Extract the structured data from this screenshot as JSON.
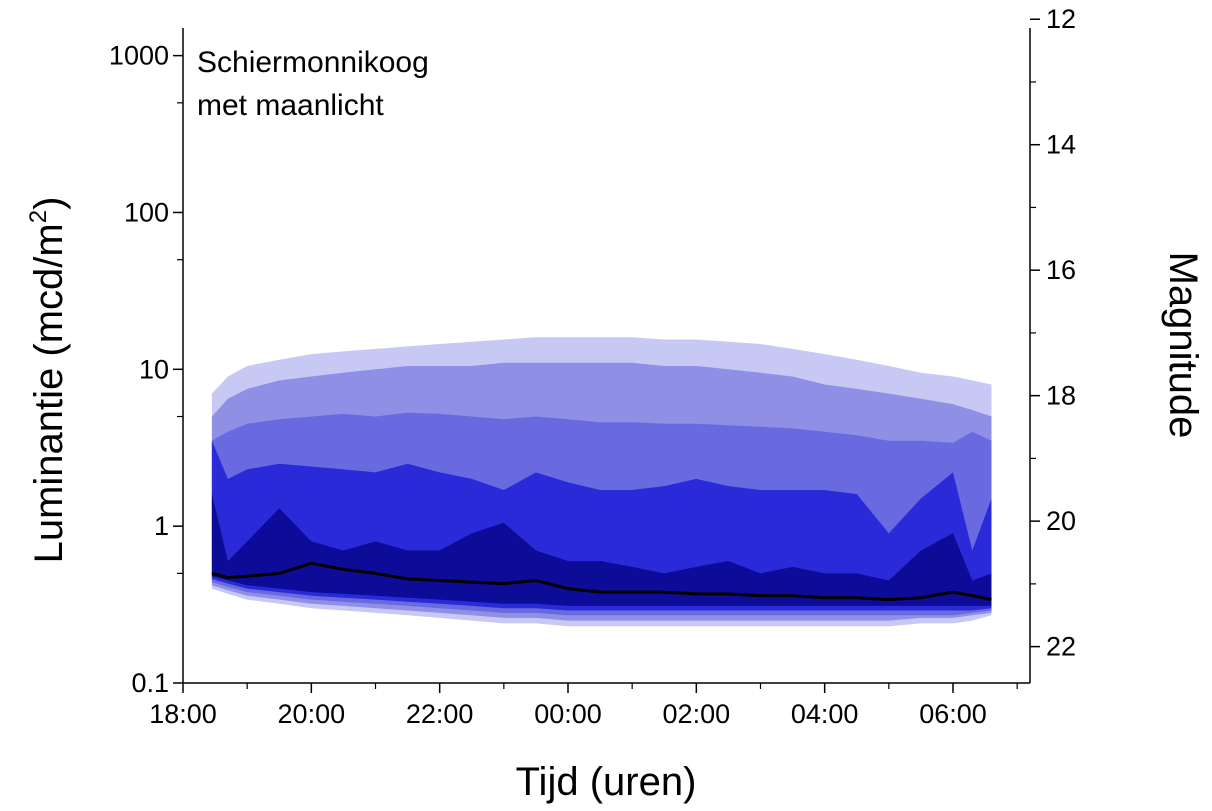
{
  "chart_data": {
    "type": "area",
    "annotation": [
      "Schiermonnikoog",
      "met maanlicht"
    ],
    "xlabel": "Tijd (uren)",
    "ylabel": "Luminantie (mcd/m",
    "ylabel_sup": "2",
    "ylabel_close": ")",
    "y2label": "Magnitude",
    "x_tick_labels": [
      "18:00",
      "20:00",
      "22:00",
      "00:00",
      "02:00",
      "04:00",
      "06:00"
    ],
    "x_tick_hours": [
      0,
      2,
      4,
      6,
      8,
      10,
      12
    ],
    "xlim_hours_after_1800": [
      0,
      13.2
    ],
    "y_scale": "log",
    "ylim": [
      0.1,
      1500
    ],
    "y_ticks": [
      0.1,
      1,
      10,
      100,
      1000
    ],
    "y_tick_labels": [
      "0.1",
      "1",
      "10",
      "100",
      "1000"
    ],
    "y2_ticks": [
      12,
      14,
      16,
      18,
      20,
      22
    ],
    "y2_tick_labels": [
      "12",
      "14",
      "16",
      "18",
      "20",
      "22"
    ],
    "y2_relation": "magnitude = 12.58 - 2.5*log10(L/1000)",
    "grid": false,
    "x_hours": [
      0.45,
      0.7,
      1.0,
      1.5,
      2.0,
      2.5,
      3.0,
      3.5,
      4.0,
      4.5,
      5.0,
      5.5,
      6.0,
      6.5,
      7.0,
      7.5,
      8.0,
      8.5,
      9.0,
      9.5,
      10.0,
      10.5,
      11.0,
      11.5,
      12.0,
      12.3,
      12.6
    ],
    "bands": [
      {
        "name": "p0-p100",
        "color": "#c8c8f4",
        "lower": [
          0.4,
          0.37,
          0.34,
          0.32,
          0.3,
          0.29,
          0.28,
          0.27,
          0.26,
          0.25,
          0.24,
          0.24,
          0.23,
          0.23,
          0.23,
          0.23,
          0.23,
          0.23,
          0.23,
          0.23,
          0.23,
          0.23,
          0.23,
          0.24,
          0.24,
          0.25,
          0.27
        ],
        "upper": [
          7.0,
          9.0,
          10.5,
          11.5,
          12.5,
          13.0,
          13.5,
          14.0,
          14.5,
          15.0,
          15.5,
          16.0,
          16.0,
          16.0,
          16.0,
          15.5,
          15.5,
          15.0,
          14.5,
          13.5,
          12.5,
          11.5,
          10.5,
          9.5,
          9.0,
          8.5,
          8.0
        ]
      },
      {
        "name": "p5-p95",
        "color": "#8f8fe6",
        "lower": [
          0.42,
          0.39,
          0.36,
          0.34,
          0.32,
          0.31,
          0.3,
          0.29,
          0.28,
          0.27,
          0.26,
          0.26,
          0.25,
          0.25,
          0.25,
          0.25,
          0.25,
          0.25,
          0.25,
          0.25,
          0.25,
          0.25,
          0.25,
          0.26,
          0.26,
          0.27,
          0.28
        ],
        "upper": [
          5.0,
          6.5,
          7.5,
          8.5,
          9.0,
          9.5,
          10.0,
          10.5,
          10.5,
          10.5,
          11.0,
          11.0,
          11.0,
          11.0,
          11.0,
          10.5,
          10.5,
          10.0,
          9.5,
          9.0,
          8.0,
          7.5,
          7.0,
          6.5,
          6.0,
          5.5,
          5.0
        ]
      },
      {
        "name": "p10-p90",
        "color": "#6a6ae0",
        "lower": [
          0.44,
          0.41,
          0.38,
          0.36,
          0.34,
          0.33,
          0.32,
          0.31,
          0.3,
          0.29,
          0.28,
          0.28,
          0.27,
          0.27,
          0.27,
          0.27,
          0.27,
          0.27,
          0.27,
          0.27,
          0.27,
          0.27,
          0.27,
          0.27,
          0.27,
          0.28,
          0.29
        ],
        "upper": [
          3.5,
          4.0,
          4.5,
          4.8,
          5.0,
          5.2,
          5.0,
          5.3,
          5.2,
          5.0,
          4.8,
          5.0,
          4.8,
          4.6,
          4.6,
          4.5,
          4.5,
          4.4,
          4.3,
          4.2,
          4.0,
          3.8,
          3.5,
          3.5,
          3.4,
          4.0,
          3.5
        ]
      },
      {
        "name": "p25-p75",
        "color": "#2a2ad8",
        "lower": [
          0.46,
          0.43,
          0.4,
          0.38,
          0.36,
          0.35,
          0.34,
          0.33,
          0.32,
          0.31,
          0.3,
          0.3,
          0.29,
          0.29,
          0.29,
          0.29,
          0.29,
          0.29,
          0.29,
          0.29,
          0.29,
          0.29,
          0.29,
          0.29,
          0.29,
          0.29,
          0.3
        ],
        "upper": [
          3.5,
          2.0,
          2.3,
          2.5,
          2.4,
          2.3,
          2.2,
          2.5,
          2.2,
          2.0,
          1.7,
          2.2,
          1.9,
          1.7,
          1.7,
          1.8,
          2.0,
          1.8,
          1.7,
          1.7,
          1.7,
          1.6,
          0.9,
          1.5,
          2.2,
          0.7,
          1.5
        ]
      },
      {
        "name": "p40-p60",
        "color": "#0c0c98",
        "lower": [
          0.48,
          0.45,
          0.42,
          0.4,
          0.38,
          0.37,
          0.36,
          0.35,
          0.34,
          0.33,
          0.32,
          0.32,
          0.31,
          0.31,
          0.31,
          0.31,
          0.31,
          0.31,
          0.31,
          0.31,
          0.31,
          0.31,
          0.31,
          0.31,
          0.31,
          0.31,
          0.31
        ],
        "upper": [
          1.6,
          0.6,
          0.8,
          1.3,
          0.8,
          0.7,
          0.8,
          0.7,
          0.7,
          0.9,
          1.05,
          0.7,
          0.6,
          0.6,
          0.55,
          0.5,
          0.55,
          0.6,
          0.5,
          0.55,
          0.5,
          0.5,
          0.45,
          0.7,
          0.9,
          0.45,
          0.5
        ]
      }
    ],
    "median": [
      0.5,
      0.47,
      0.48,
      0.5,
      0.58,
      0.53,
      0.5,
      0.46,
      0.45,
      0.44,
      0.43,
      0.45,
      0.4,
      0.38,
      0.38,
      0.38,
      0.37,
      0.37,
      0.36,
      0.36,
      0.35,
      0.35,
      0.34,
      0.35,
      0.38,
      0.36,
      0.34
    ],
    "median_color": "#000000"
  }
}
